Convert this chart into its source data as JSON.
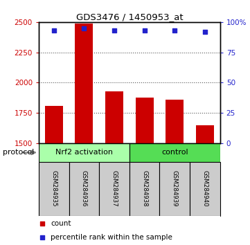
{
  "title": "GDS3476 / 1450953_at",
  "samples": [
    "GSM284935",
    "GSM284936",
    "GSM284937",
    "GSM284938",
    "GSM284939",
    "GSM284940"
  ],
  "counts": [
    1810,
    2490,
    1930,
    1880,
    1860,
    1650
  ],
  "percentile_ranks": [
    93,
    95,
    93,
    93,
    93,
    92
  ],
  "ylim_left": [
    1500,
    2500
  ],
  "ylim_right": [
    0,
    100
  ],
  "yticks_left": [
    1500,
    1750,
    2000,
    2250,
    2500
  ],
  "yticks_right": [
    0,
    25,
    50,
    75,
    100
  ],
  "bar_color": "#cc0000",
  "dot_color": "#2222cc",
  "group1_color": "#aaffaa",
  "group2_color": "#55dd55",
  "group1_label": "Nrf2 activation",
  "group2_label": "control",
  "protocol_label": "protocol",
  "legend_count_label": "count",
  "legend_pct_label": "percentile rank within the sample",
  "background_color": "#ffffff",
  "sample_box_color": "#cccccc",
  "grid_color": "#555555"
}
